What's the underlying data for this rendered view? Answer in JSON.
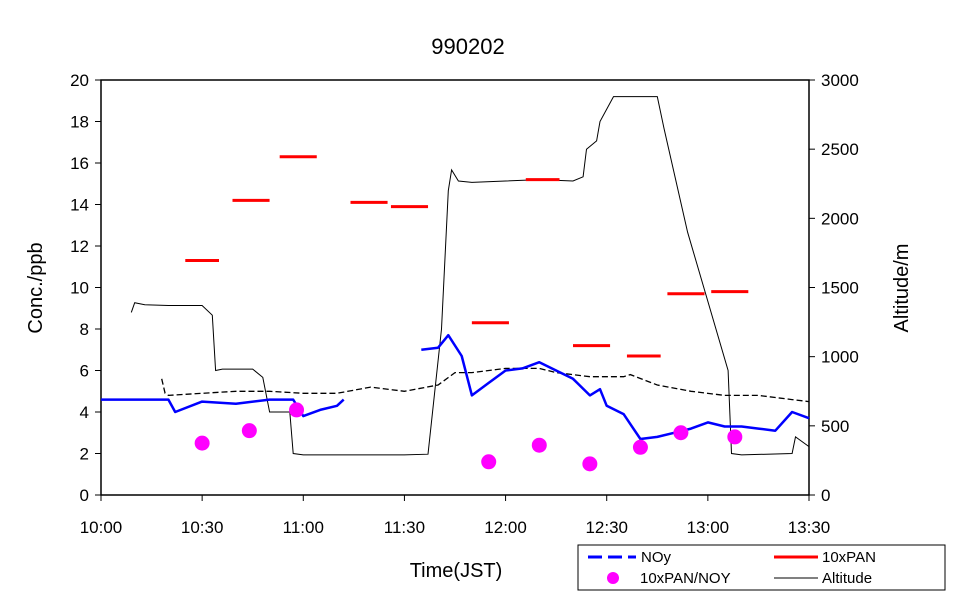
{
  "chart_data": {
    "type": "line",
    "title": "990202",
    "xlabel": "Time(JST)",
    "ylabel_left": "Conc./ppb",
    "ylabel_right": "Altitude/m",
    "x_ticks": [
      "10:00",
      "10:30",
      "11:00",
      "11:30",
      "12:00",
      "12:30",
      "13:00",
      "13:30"
    ],
    "ylim_left": [
      0,
      20
    ],
    "yticks_left": [
      "0",
      "2",
      "4",
      "6",
      "8",
      "10",
      "12",
      "14",
      "16",
      "18",
      "20"
    ],
    "ylim_right": [
      0,
      3000
    ],
    "yticks_right": [
      "0",
      "500",
      "1000",
      "1500",
      "2000",
      "2500",
      "3000"
    ],
    "grid": false,
    "legend_position": "bottom-right, below plot",
    "legend": {
      "noy": "NOy",
      "pan": "10xPAN",
      "ratio": "10xPAN/NOY",
      "alt": "Altitude"
    },
    "colors": {
      "noy": "#0000ff",
      "pan": "#ff0000",
      "ratio": "#ff00ff",
      "alt": "#000000",
      "noy_dashed_trace": "#000000"
    },
    "series": [
      {
        "name": "NOy",
        "axis": "left",
        "style": "solid blue line",
        "x": [
          "10:00",
          "10:20",
          "10:22",
          "10:30",
          "10:40",
          "10:50",
          "10:57",
          "11:00",
          "11:05",
          "11:10",
          "11:12"
        ],
        "values": [
          4.6,
          4.6,
          4.0,
          4.5,
          4.4,
          4.6,
          4.6,
          3.8,
          4.1,
          4.3,
          4.6
        ]
      },
      {
        "name": "NOy",
        "axis": "left",
        "style": "solid blue line",
        "x": [
          "11:35",
          "11:40",
          "11:43",
          "11:47",
          "11:50",
          "11:55",
          "12:00",
          "12:05",
          "12:10",
          "12:15",
          "12:20",
          "12:25",
          "12:28",
          "12:30",
          "12:35",
          "12:40",
          "12:45",
          "12:50",
          "12:55",
          "13:00",
          "13:05",
          "13:10",
          "13:15",
          "13:20",
          "13:25",
          "13:30"
        ],
        "values": [
          7.0,
          7.1,
          7.7,
          6.7,
          4.8,
          5.4,
          6.0,
          6.1,
          6.4,
          6.0,
          5.6,
          4.8,
          5.1,
          4.3,
          3.9,
          2.7,
          2.8,
          3.0,
          3.2,
          3.5,
          3.3,
          3.3,
          3.2,
          3.1,
          4.0,
          3.7
        ]
      },
      {
        "name": "NOy",
        "axis": "left",
        "style": "black dashed trace",
        "x": [
          "10:18",
          "10:19",
          "10:20",
          "10:30",
          "10:40",
          "10:50",
          "11:00",
          "11:10",
          "11:20",
          "11:30",
          "11:40",
          "11:45",
          "11:50",
          "12:00",
          "12:10",
          "12:15",
          "12:25",
          "12:35",
          "12:37",
          "12:45",
          "12:55",
          "13:05",
          "13:15",
          "13:20",
          "13:25",
          "13:30"
        ],
        "values": [
          5.6,
          4.9,
          4.8,
          4.9,
          5.0,
          5.0,
          4.9,
          4.9,
          5.2,
          5.0,
          5.3,
          5.9,
          5.9,
          6.1,
          6.1,
          5.9,
          5.7,
          5.7,
          5.8,
          5.3,
          5.0,
          4.8,
          4.8,
          4.7,
          4.6,
          4.5
        ]
      },
      {
        "name": "10xPAN",
        "axis": "left",
        "style": "red horizontal segments",
        "segments": [
          {
            "x_start": "10:25",
            "x_end": "10:35",
            "value": 11.3
          },
          {
            "x_start": "10:39",
            "x_end": "10:50",
            "value": 14.2
          },
          {
            "x_start": "10:53",
            "x_end": "11:04",
            "value": 16.3
          },
          {
            "x_start": "11:14",
            "x_end": "11:25",
            "value": 14.1
          },
          {
            "x_start": "11:26",
            "x_end": "11:37",
            "value": 13.9
          },
          {
            "x_start": "11:50",
            "x_end": "12:01",
            "value": 8.3
          },
          {
            "x_start": "12:06",
            "x_end": "12:16",
            "value": 15.2
          },
          {
            "x_start": "12:20",
            "x_end": "12:31",
            "value": 7.2
          },
          {
            "x_start": "12:36",
            "x_end": "12:46",
            "value": 6.7
          },
          {
            "x_start": "12:48",
            "x_end": "12:59",
            "value": 9.7
          },
          {
            "x_start": "13:01",
            "x_end": "13:12",
            "value": 9.8
          }
        ]
      },
      {
        "name": "10xPAN/NOY",
        "axis": "left",
        "style": "magenta dots",
        "x": [
          "10:30",
          "10:44",
          "10:58",
          "11:55",
          "12:10",
          "12:25",
          "12:40",
          "12:52",
          "13:08"
        ],
        "values": [
          2.5,
          3.1,
          4.1,
          1.6,
          2.4,
          1.5,
          2.3,
          3.0,
          2.8
        ]
      },
      {
        "name": "Altitude",
        "axis": "right",
        "style": "thin black line",
        "x": [
          "10:09",
          "10:10",
          "10:13",
          "10:20",
          "10:30",
          "10:33",
          "10:34",
          "10:36",
          "10:45",
          "10:48",
          "10:50",
          "10:56",
          "10:57",
          "11:00",
          "11:10",
          "11:30",
          "11:37",
          "11:41",
          "11:43",
          "11:44",
          "11:46",
          "11:50",
          "12:00",
          "12:10",
          "12:20",
          "12:23",
          "12:24",
          "12:27",
          "12:28",
          "12:32",
          "12:40",
          "12:45",
          "12:47",
          "12:54",
          "13:06",
          "13:07",
          "13:10",
          "13:25",
          "13:26",
          "13:30"
        ],
        "values": [
          1320,
          1390,
          1375,
          1370,
          1370,
          1300,
          900,
          910,
          910,
          850,
          600,
          600,
          300,
          290,
          290,
          290,
          295,
          1200,
          2200,
          2350,
          2270,
          2260,
          2270,
          2280,
          2270,
          2300,
          2500,
          2560,
          2700,
          2880,
          2880,
          2880,
          2650,
          1900,
          900,
          300,
          290,
          300,
          420,
          350
        ]
      }
    ]
  }
}
